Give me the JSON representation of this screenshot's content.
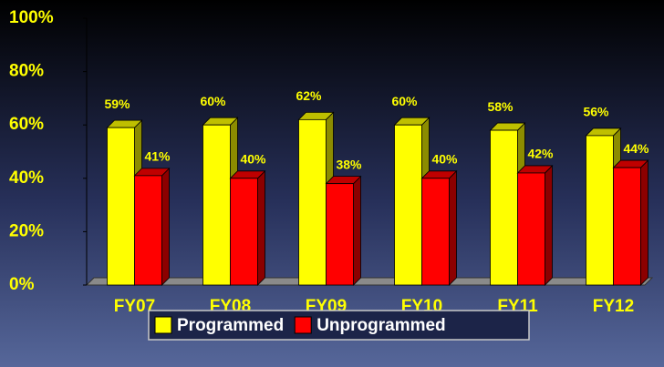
{
  "chart_data": {
    "type": "bar3d",
    "categories": [
      "FY07",
      "FY08",
      "FY09",
      "FY10",
      "FY11",
      "FY12"
    ],
    "series": [
      {
        "name": "Programmed",
        "color": "#ffff00",
        "values": [
          59,
          60,
          62,
          60,
          58,
          56
        ],
        "value_labels": [
          "59%",
          "60%",
          "62%",
          "60%",
          "58%",
          "56%"
        ]
      },
      {
        "name": "Unprogrammed",
        "color": "#ff0000",
        "values": [
          41,
          40,
          38,
          40,
          42,
          44
        ],
        "value_labels": [
          "41%",
          "40%",
          "38%",
          "40%",
          "42%",
          "44%"
        ]
      }
    ],
    "ylim": [
      0,
      100
    ],
    "yticks": [
      {
        "value": 0,
        "label": "0%"
      },
      {
        "value": 20,
        "label": "20%"
      },
      {
        "value": 40,
        "label": "40%"
      },
      {
        "value": 60,
        "label": "60%"
      },
      {
        "value": 80,
        "label": "80%"
      },
      {
        "value": 100,
        "label": "100%"
      }
    ],
    "legend": "bottom"
  }
}
